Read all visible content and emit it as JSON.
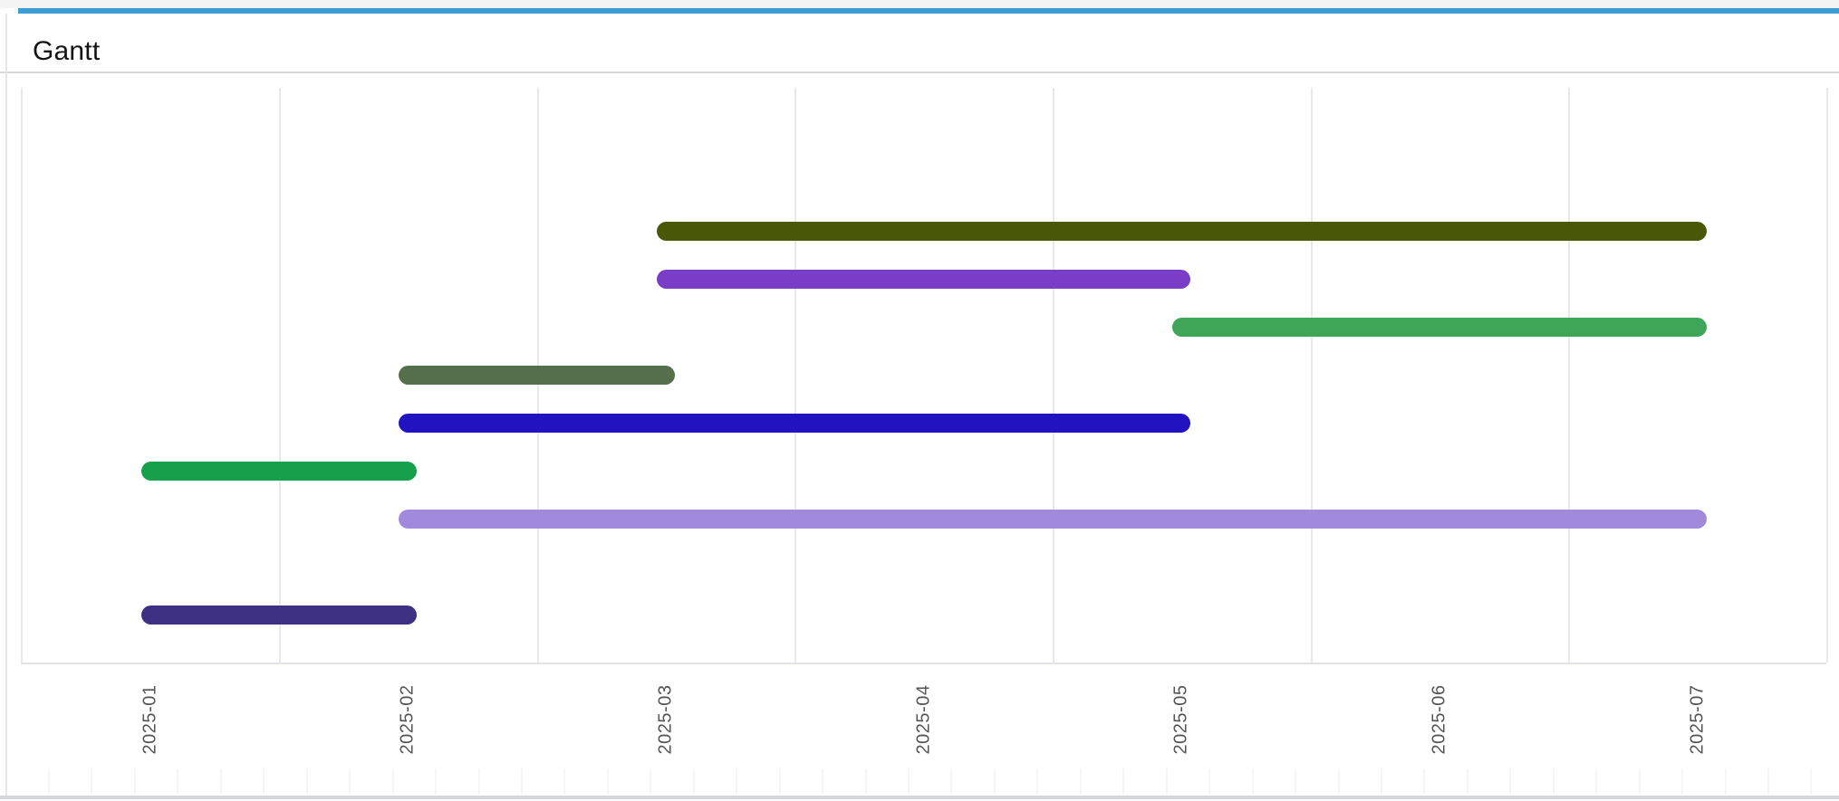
{
  "header": {
    "title": "Gantt"
  },
  "colors": {
    "accent_bar": "#3c9dd5",
    "top_strip": "#f4f4f4",
    "title_text": "#141414",
    "header_divider": "#d8d8d8",
    "grid_line": "#e9e9e9",
    "axis_line": "#e1e1e8",
    "axis_label": "#555555",
    "bottom_border": "#d4d7da"
  },
  "chart_data": {
    "type": "bar",
    "subtype": "gantt-horizontal",
    "title": "Gantt",
    "xlabel": "",
    "ylabel": "",
    "x_axis": {
      "tick_labels": [
        "2025-01",
        "2025-02",
        "2025-03",
        "2025-04",
        "2025-05",
        "2025-06",
        "2025-07"
      ],
      "label_rotation_deg": 90,
      "gridlines_between_labels": true,
      "grid_on": true
    },
    "y_axis": {
      "tick_labels": [],
      "rows_visible": 9,
      "empty_rows": [
        8
      ]
    },
    "bars": [
      {
        "row": 1,
        "start": "2025-03",
        "end": "2025-07",
        "color": "#485807"
      },
      {
        "row": 2,
        "start": "2025-03",
        "end": "2025-05",
        "color": "#7a3ec6"
      },
      {
        "row": 3,
        "start": "2025-05",
        "end": "2025-07",
        "color": "#3fa657"
      },
      {
        "row": 4,
        "start": "2025-02",
        "end": "2025-03",
        "color": "#556e4b"
      },
      {
        "row": 5,
        "start": "2025-02",
        "end": "2025-05",
        "color": "#2114c0"
      },
      {
        "row": 6,
        "start": "2025-01",
        "end": "2025-02",
        "color": "#17a04b"
      },
      {
        "row": 7,
        "start": "2025-02",
        "end": "2025-07",
        "color": "#a189db"
      },
      {
        "row": 9,
        "start": "2025-01",
        "end": "2025-02",
        "color": "#3e3082"
      }
    ],
    "legend": {
      "visible": false
    }
  }
}
